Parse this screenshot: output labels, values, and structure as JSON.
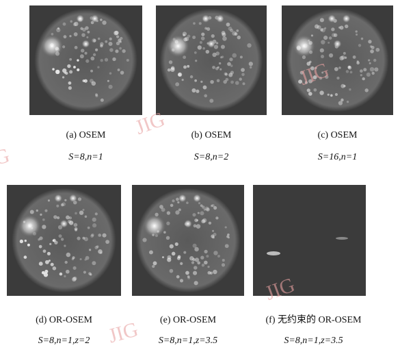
{
  "panels": [
    {
      "label": "(a) OSEM",
      "params": "S=8,n=1"
    },
    {
      "label": "(b) OSEM",
      "params": "S=8,n=2"
    },
    {
      "label": "(c) OSEM",
      "params": "S=16,n=1"
    },
    {
      "label": "(d) OR-OSEM",
      "params": "S=8,n=1,z=2"
    },
    {
      "label": "(e) OR-OSEM",
      "params": "S=8,n=1,z=3.5"
    },
    {
      "label": "(f) 无约束的 OR-OSEM",
      "params": "S=8,n=1,z=3.5"
    }
  ],
  "watermarks": [
    "JIG",
    "JIG",
    "JIG",
    "JIG",
    "JIG"
  ]
}
